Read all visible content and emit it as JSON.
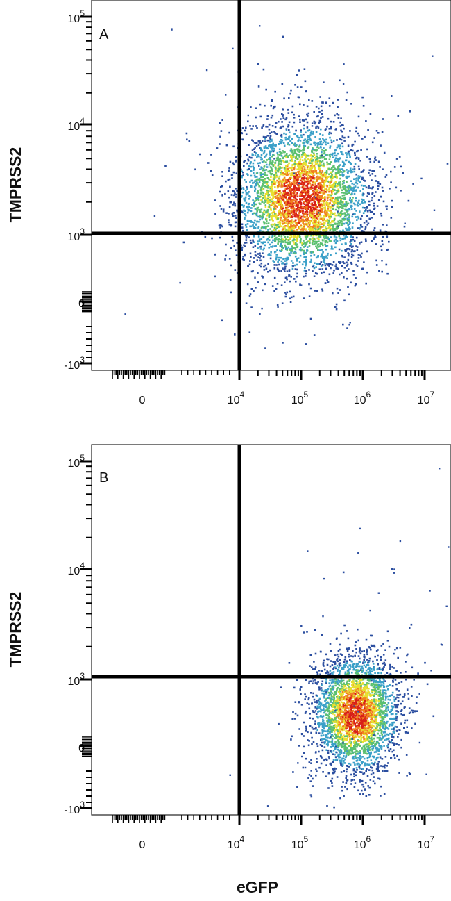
{
  "figure": {
    "ylabel": "TMPRSS2",
    "xlabel": "eGFP"
  },
  "chart_data": [
    {
      "type": "scatter",
      "panel_label": "A",
      "xlabel": "",
      "ylabel": "TMPRSS2",
      "x_scale": "biexponential",
      "y_scale": "biexponential",
      "x_ticks": [
        "0",
        "10^4",
        "10^5",
        "10^6",
        "10^7"
      ],
      "y_ticks": [
        "10^5",
        "10^4",
        "10^3",
        "0",
        "-10^3"
      ],
      "quadrant_gate": {
        "x": 12000,
        "y": 1100
      },
      "populations": [
        {
          "center_x": 100000,
          "center_y": 2200,
          "spread_x_decades": 0.55,
          "spread_y_decades": 0.35,
          "density": "high"
        }
      ],
      "colors": [
        "#2b4ea0",
        "#3aa0c8",
        "#5cc070",
        "#e8e030",
        "#f08020",
        "#d82018"
      ]
    },
    {
      "type": "scatter",
      "panel_label": "B",
      "xlabel": "eGFP",
      "ylabel": "TMPRSS2",
      "x_scale": "biexponential",
      "y_scale": "biexponential",
      "x_ticks": [
        "0",
        "10^4",
        "10^5",
        "10^6",
        "10^7"
      ],
      "y_ticks": [
        "10^5",
        "10^4",
        "10^3",
        "0",
        "-10^3"
      ],
      "quadrant_gate": {
        "x": 12000,
        "y": 1100
      },
      "populations": [
        {
          "center_x": 750000,
          "center_y": 500,
          "spread_x_decades": 0.35,
          "spread_y_decades": 0.3,
          "density": "high"
        }
      ],
      "colors": [
        "#2b4ea0",
        "#3aa0c8",
        "#5cc070",
        "#e8e030",
        "#f08020",
        "#d82018"
      ]
    }
  ]
}
